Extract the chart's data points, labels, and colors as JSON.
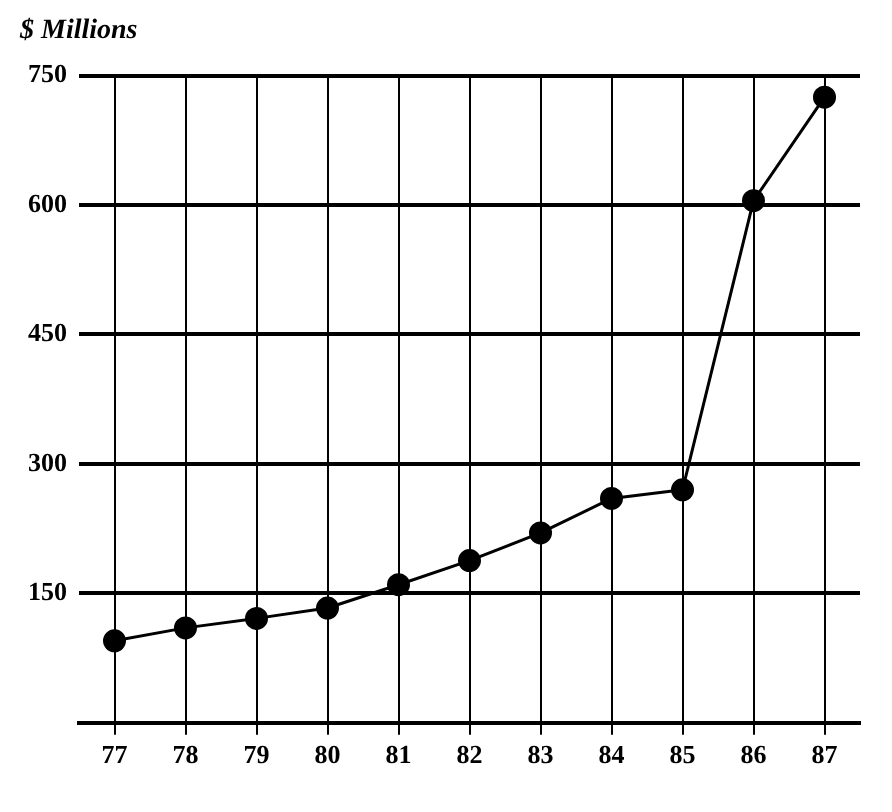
{
  "chart_data": {
    "type": "line",
    "ylabel": "$ Millions",
    "categories": [
      "77",
      "78",
      "79",
      "80",
      "81",
      "82",
      "83",
      "84",
      "85",
      "86",
      "87"
    ],
    "series": [
      {
        "color": "#000000",
        "values": [
          95,
          110,
          121,
          133,
          160,
          188,
          220,
          260,
          270,
          605,
          725
        ]
      }
    ],
    "ylim": [
      0,
      750
    ],
    "yticks": [
      150,
      300,
      450,
      600,
      750
    ],
    "grid": true,
    "legend": false,
    "marker": "circle",
    "line_style": "solid"
  }
}
